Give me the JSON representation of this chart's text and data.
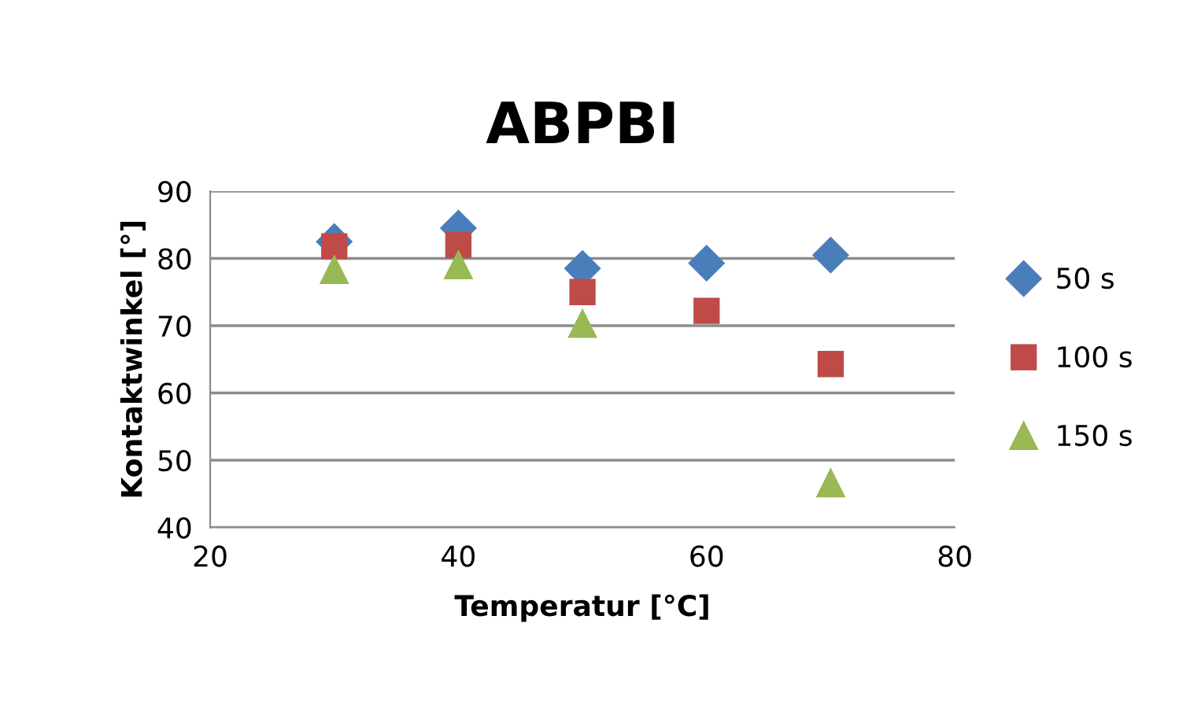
{
  "chart_data": {
    "type": "scatter",
    "title": "ABPBI",
    "xlabel": "Temperatur [°C]",
    "ylabel": "Kontaktwinkel [°]",
    "xlim": [
      20,
      80
    ],
    "xticks": [
      20,
      40,
      60,
      80
    ],
    "ylim": [
      40,
      90
    ],
    "yticks": [
      40,
      50,
      60,
      70,
      80,
      90
    ],
    "grid": "y",
    "legend": "right",
    "series": [
      {
        "name": "50 s",
        "color": "#4a7ebb",
        "marker": "diamond",
        "x": [
          30,
          40,
          50,
          60,
          70
        ],
        "values": [
          82.5,
          84.5,
          78.5,
          79.3,
          80.5
        ]
      },
      {
        "name": "100 s",
        "color": "#be4b48",
        "marker": "square",
        "x": [
          30,
          40,
          50,
          60,
          70
        ],
        "values": [
          81.8,
          82,
          75,
          72.2,
          64.3
        ]
      },
      {
        "name": "150 s",
        "color": "#98b954",
        "marker": "triangle",
        "x": [
          30,
          40,
          50,
          70
        ],
        "values": [
          78.3,
          79,
          70.3,
          46.6
        ]
      }
    ]
  }
}
